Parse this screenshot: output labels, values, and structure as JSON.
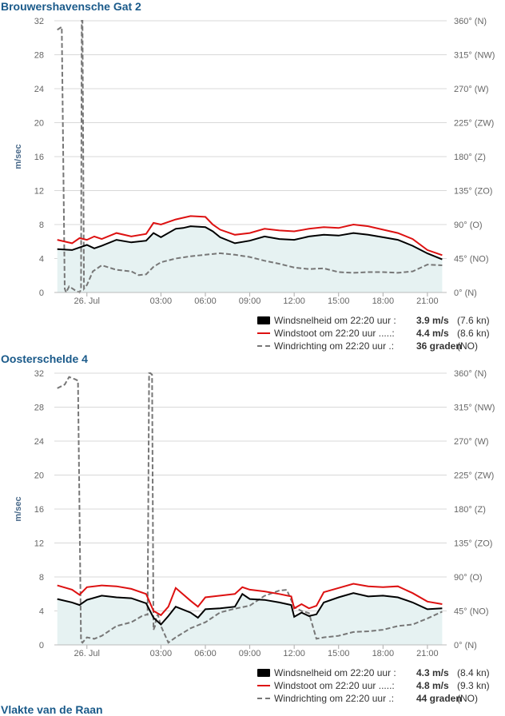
{
  "stations": [
    {
      "title": "Brouwershavensche Gat 2",
      "legend": {
        "speed": {
          "label": "Windsnelheid om 22:20 uur :",
          "value": "3.9 m/s",
          "unit": "(7.6 kn)"
        },
        "gust": {
          "label": "Windstoot om 22:20 uur .....:",
          "value": "4.4 m/s",
          "unit": "(8.6 kn)"
        },
        "direction": {
          "label": "Windrichting om 22:20 uur .:",
          "value": "36 graden",
          "unit": "(NO)"
        }
      }
    },
    {
      "title": "Oosterschelde 4",
      "legend": {
        "speed": {
          "label": "Windsnelheid om 22:20 uur :",
          "value": "4.3 m/s",
          "unit": "(8.4 kn)"
        },
        "gust": {
          "label": "Windstoot om 22:20 uur .....:",
          "value": "4.8 m/s",
          "unit": "(9.3 kn)"
        },
        "direction": {
          "label": "Windrichting om 22:20 uur .:",
          "value": "44 graden",
          "unit": "(NO)"
        }
      }
    }
  ],
  "cut_title": "Vlakte van de Raan",
  "colors": {
    "speed": "#000000",
    "gust": "#dd1111",
    "direction": "#777777",
    "area": "#e6f2f2",
    "grid": "#d8d8d8",
    "axis_text": "#666666",
    "title": "#1a5a8a"
  },
  "chart_data": [
    {
      "type": "line",
      "ylabel": "m/sec",
      "ylim": [
        0,
        32
      ],
      "y_ticks": [
        "0",
        "4",
        "8",
        "12",
        "16",
        "20",
        "24",
        "28",
        "32"
      ],
      "y2lim": [
        0,
        360
      ],
      "y2_ticks": [
        "0° (N)",
        "45° (NO)",
        "90° (O)",
        "135° (ZO)",
        "180° (Z)",
        "225° (ZW)",
        "270° (W)",
        "315° (NW)",
        "360° (N)"
      ],
      "xlim": [
        -4.2,
        22.3
      ],
      "x_ticks": [
        {
          "pos": -2.0,
          "label": "26. Jul"
        },
        {
          "pos": 3,
          "label": "03:00"
        },
        {
          "pos": 6,
          "label": "06:00"
        },
        {
          "pos": 9,
          "label": "09:00"
        },
        {
          "pos": 12,
          "label": "12:00"
        },
        {
          "pos": 15,
          "label": "15:00"
        },
        {
          "pos": 18,
          "label": "18:00"
        },
        {
          "pos": 21,
          "label": "21:00"
        }
      ],
      "grid": true,
      "legend": "bottom-right",
      "series": [
        {
          "name": "Windsnelheid",
          "axis": "left",
          "x": [
            -4.0,
            -3.0,
            -2.5,
            -2.0,
            -1.5,
            -1.0,
            0.0,
            1.0,
            2.0,
            2.5,
            3.0,
            4.0,
            4.5,
            5.0,
            6.0,
            6.5,
            7.0,
            8.0,
            9.0,
            10.0,
            11.0,
            12.0,
            13.0,
            14.0,
            15.0,
            16.0,
            17.0,
            18.0,
            19.0,
            20.0,
            21.0,
            22.0
          ],
          "values": [
            5.1,
            5.0,
            5.3,
            5.6,
            5.2,
            5.5,
            6.2,
            5.9,
            6.1,
            7.0,
            6.5,
            7.5,
            7.6,
            7.8,
            7.7,
            7.2,
            6.5,
            5.8,
            6.1,
            6.6,
            6.3,
            6.2,
            6.6,
            6.8,
            6.7,
            7.0,
            6.8,
            6.5,
            6.2,
            5.5,
            4.6,
            3.9
          ]
        },
        {
          "name": "Windstoot",
          "axis": "left",
          "x": [
            -4.0,
            -3.0,
            -2.5,
            -2.0,
            -1.5,
            -1.0,
            0.0,
            1.0,
            2.0,
            2.5,
            3.0,
            4.0,
            4.5,
            5.0,
            6.0,
            6.5,
            7.0,
            8.0,
            9.0,
            10.0,
            11.0,
            12.0,
            13.0,
            14.0,
            15.0,
            16.0,
            17.0,
            18.0,
            19.0,
            20.0,
            21.0,
            22.0
          ],
          "values": [
            6.2,
            5.8,
            6.4,
            6.2,
            6.6,
            6.3,
            7.0,
            6.6,
            6.9,
            8.2,
            8.0,
            8.6,
            8.8,
            9.0,
            8.9,
            8.0,
            7.4,
            6.8,
            7.0,
            7.5,
            7.3,
            7.2,
            7.5,
            7.7,
            7.6,
            8.0,
            7.8,
            7.4,
            7.0,
            6.3,
            5.0,
            4.4
          ]
        },
        {
          "name": "Windrichting",
          "axis": "right",
          "x": [
            -4.0,
            -3.7,
            -3.5,
            -3.4,
            -3.2,
            -2.8,
            -2.5,
            -2.4,
            -2.35,
            -2.3,
            -2.2,
            -2.0,
            -1.6,
            -1.0,
            0.0,
            1.0,
            1.5,
            2.0,
            2.5,
            3.0,
            4.0,
            5.0,
            6.0,
            7.0,
            8.0,
            9.0,
            10.0,
            11.0,
            12.0,
            13.0,
            14.0,
            15.0,
            16.0,
            17.0,
            18.0,
            19.0,
            20.0,
            21.0,
            22.0
          ],
          "values": [
            348,
            352,
            5,
            0,
            8,
            3,
            0,
            4,
            360,
            360,
            5,
            10,
            28,
            36,
            30,
            28,
            23,
            24,
            34,
            40,
            45,
            48,
            50,
            52,
            50,
            47,
            42,
            38,
            33,
            31,
            32,
            27,
            26,
            27,
            27,
            26,
            28,
            37,
            36
          ]
        }
      ]
    },
    {
      "type": "line",
      "ylabel": "m/sec",
      "ylim": [
        0,
        32
      ],
      "y_ticks": [
        "0",
        "4",
        "8",
        "12",
        "16",
        "20",
        "24",
        "28",
        "32"
      ],
      "y2lim": [
        0,
        360
      ],
      "y2_ticks": [
        "0° (N)",
        "45° (NO)",
        "90° (O)",
        "135° (ZO)",
        "180° (Z)",
        "225° (ZW)",
        "270° (W)",
        "315° (NW)",
        "360° (N)"
      ],
      "xlim": [
        -4.2,
        22.3
      ],
      "x_ticks": [
        {
          "pos": -2.0,
          "label": "26. Jul"
        },
        {
          "pos": 3,
          "label": "03:00"
        },
        {
          "pos": 6,
          "label": "06:00"
        },
        {
          "pos": 9,
          "label": "09:00"
        },
        {
          "pos": 12,
          "label": "12:00"
        },
        {
          "pos": 15,
          "label": "15:00"
        },
        {
          "pos": 18,
          "label": "18:00"
        },
        {
          "pos": 21,
          "label": "21:00"
        }
      ],
      "grid": true,
      "legend": "bottom-right",
      "series": [
        {
          "name": "Windsnelheid",
          "axis": "left",
          "x": [
            -4.0,
            -3.0,
            -2.5,
            -2.0,
            -1.0,
            0.0,
            1.0,
            2.0,
            2.5,
            3.0,
            3.5,
            4.0,
            5.0,
            5.5,
            6.0,
            7.0,
            8.0,
            8.5,
            9.0,
            10.0,
            11.0,
            11.8,
            12.0,
            12.5,
            13.0,
            13.5,
            14.0,
            15.0,
            16.0,
            17.0,
            18.0,
            19.0,
            20.0,
            21.0,
            22.0
          ],
          "values": [
            5.4,
            5.0,
            4.7,
            5.3,
            5.8,
            5.6,
            5.5,
            4.9,
            3.2,
            2.4,
            3.4,
            4.5,
            3.8,
            3.2,
            4.2,
            4.3,
            4.5,
            6.0,
            5.4,
            5.3,
            5.0,
            4.7,
            3.3,
            3.8,
            3.4,
            3.6,
            5.0,
            5.6,
            6.1,
            5.7,
            5.8,
            5.6,
            5.0,
            4.2,
            4.3
          ]
        },
        {
          "name": "Windstoot",
          "axis": "left",
          "x": [
            -4.0,
            -3.0,
            -2.5,
            -2.0,
            -1.0,
            0.0,
            1.0,
            2.0,
            2.5,
            3.0,
            3.5,
            4.0,
            5.0,
            5.5,
            6.0,
            7.0,
            8.0,
            8.5,
            9.0,
            10.0,
            11.0,
            11.8,
            12.0,
            12.5,
            13.0,
            13.5,
            14.0,
            15.0,
            16.0,
            17.0,
            18.0,
            19.0,
            20.0,
            21.0,
            22.0
          ],
          "values": [
            7.0,
            6.5,
            5.9,
            6.8,
            7.0,
            6.9,
            6.6,
            6.0,
            4.0,
            3.5,
            4.5,
            6.7,
            5.2,
            4.5,
            5.6,
            5.8,
            6.0,
            6.8,
            6.5,
            6.3,
            6.0,
            5.7,
            4.3,
            4.8,
            4.3,
            4.6,
            6.2,
            6.7,
            7.2,
            6.9,
            6.8,
            6.9,
            6.1,
            5.1,
            4.8
          ]
        },
        {
          "name": "Windrichting",
          "axis": "right",
          "x": [
            -4.0,
            -3.5,
            -3.2,
            -2.8,
            -2.6,
            -2.4,
            -2.3,
            -2.0,
            -1.5,
            -1.0,
            0.0,
            1.0,
            1.7,
            2.0,
            2.1,
            2.2,
            2.3,
            2.4,
            2.5,
            2.6,
            2.7,
            2.8,
            3.0,
            3.5,
            4.0,
            5.0,
            6.0,
            7.0,
            8.0,
            9.0,
            10.0,
            11.0,
            11.5,
            12.0,
            12.5,
            13.0,
            13.5,
            14.0,
            15.0,
            16.0,
            17.0,
            18.0,
            19.0,
            20.0,
            21.0,
            22.0
          ],
          "values": [
            340,
            345,
            355,
            352,
            350,
            5,
            3,
            10,
            8,
            12,
            25,
            30,
            38,
            40,
            40,
            360,
            360,
            358,
            20,
            25,
            38,
            40,
            25,
            3,
            10,
            22,
            30,
            43,
            48,
            52,
            65,
            72,
            73,
            50,
            45,
            42,
            8,
            10,
            12,
            17,
            18,
            20,
            25,
            27,
            35,
            44
          ]
        }
      ]
    }
  ]
}
